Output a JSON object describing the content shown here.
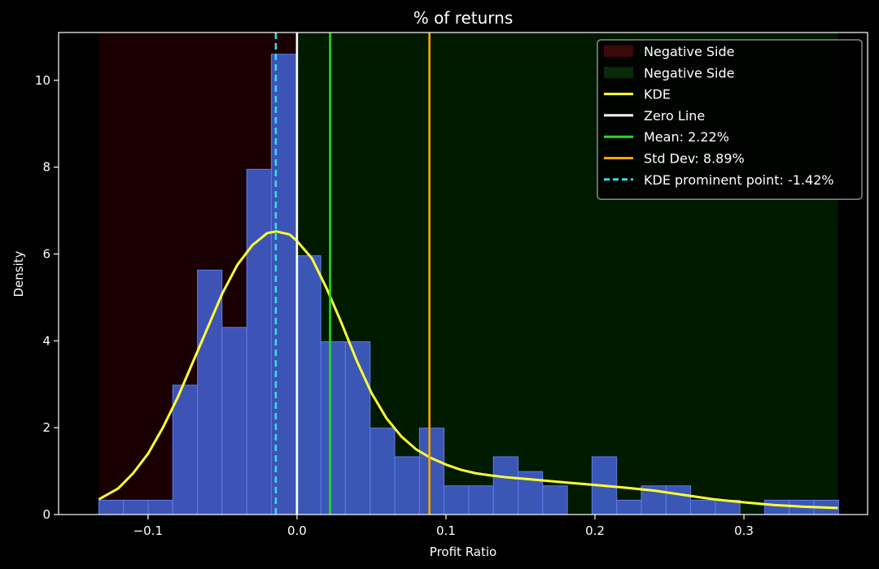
{
  "chart_data": {
    "type": "bar",
    "title": "% of returns",
    "xlabel": "Profit Ratio",
    "ylabel": "Density",
    "xlim": [
      -0.16,
      0.383
    ],
    "ylim": [
      0,
      11.1
    ],
    "grid": false,
    "legend_position": "top-right",
    "x_ticks": [
      {
        "value": -0.1,
        "label": "−0.1"
      },
      {
        "value": 0.0,
        "label": "0.0"
      },
      {
        "value": 0.1,
        "label": "0.1"
      },
      {
        "value": 0.2,
        "label": "0.2"
      },
      {
        "value": 0.3,
        "label": "0.3"
      }
    ],
    "y_ticks": [
      {
        "value": 0,
        "label": "0"
      },
      {
        "value": 2,
        "label": "2"
      },
      {
        "value": 4,
        "label": "4"
      },
      {
        "value": 6,
        "label": "6"
      },
      {
        "value": 8,
        "label": "8"
      },
      {
        "value": 10,
        "label": "10"
      }
    ],
    "regions": [
      {
        "name": "Negative Side",
        "x_range": [
          -0.133,
          0.0
        ],
        "color": "#ff0000",
        "opacity": 0.1
      },
      {
        "name": "Negative Side",
        "x_range": [
          0.0,
          0.363
        ],
        "color": "#00ff00",
        "opacity": 0.1
      }
    ],
    "histogram": {
      "bin_edges": [
        -0.133,
        -0.1165,
        -0.0999,
        -0.0834,
        -0.0668,
        -0.0503,
        -0.0337,
        -0.0172,
        -0.0006,
        0.016,
        0.0325,
        0.0491,
        0.0656,
        0.0822,
        0.0987,
        0.1153,
        0.1318,
        0.1484,
        0.1649,
        0.1815,
        0.198,
        0.2146,
        0.2311,
        0.2477,
        0.2642,
        0.2808,
        0.2973,
        0.3139,
        0.3304,
        0.347,
        0.3635
      ],
      "values": [
        0.33,
        0.33,
        0.33,
        2.98,
        5.63,
        4.31,
        7.95,
        10.6,
        5.96,
        3.98,
        3.98,
        1.99,
        1.33,
        1.99,
        0.66,
        0.66,
        1.33,
        0.99,
        0.66,
        0,
        1.33,
        0.33,
        0.66,
        0.66,
        0.33,
        0.33,
        0,
        0.33,
        0.33,
        0.33
      ],
      "color": "#4463d6"
    },
    "kde": {
      "name": "KDE",
      "color": "#ffff33",
      "x": [
        -0.133,
        -0.12,
        -0.11,
        -0.1,
        -0.09,
        -0.08,
        -0.07,
        -0.06,
        -0.05,
        -0.04,
        -0.03,
        -0.02,
        -0.014,
        -0.005,
        0.0,
        0.01,
        0.02,
        0.03,
        0.04,
        0.05,
        0.06,
        0.07,
        0.08,
        0.09,
        0.1,
        0.11,
        0.12,
        0.13,
        0.14,
        0.16,
        0.18,
        0.2,
        0.22,
        0.24,
        0.26,
        0.28,
        0.3,
        0.32,
        0.34,
        0.363
      ],
      "y": [
        0.35,
        0.6,
        0.95,
        1.4,
        2.0,
        2.7,
        3.5,
        4.3,
        5.1,
        5.75,
        6.2,
        6.48,
        6.52,
        6.45,
        6.3,
        5.9,
        5.2,
        4.4,
        3.55,
        2.8,
        2.22,
        1.8,
        1.5,
        1.3,
        1.15,
        1.03,
        0.95,
        0.9,
        0.86,
        0.8,
        0.74,
        0.68,
        0.62,
        0.55,
        0.45,
        0.35,
        0.28,
        0.22,
        0.18,
        0.15
      ]
    },
    "vlines": [
      {
        "name": "Zero Line",
        "x": 0.0,
        "color": "#ffffff",
        "dashed": false
      },
      {
        "name": "Mean: 2.22%",
        "x": 0.0222,
        "color": "#22dd22",
        "dashed": false
      },
      {
        "name": "Std Dev: 8.89%",
        "x": 0.0889,
        "color": "#ffa500",
        "dashed": false
      },
      {
        "name": "KDE prominent point: -1.42%",
        "x": -0.0142,
        "color": "#33dddd",
        "dashed": true
      }
    ],
    "legend": [
      {
        "label": "Negative Side",
        "kind": "patch",
        "color": "#3b0a0a"
      },
      {
        "label": "Negative Side",
        "kind": "patch",
        "color": "#0a2a0a"
      },
      {
        "label": "KDE",
        "kind": "line",
        "color": "#ffff33",
        "dashed": false
      },
      {
        "label": "Zero Line",
        "kind": "line",
        "color": "#ffffff",
        "dashed": false
      },
      {
        "label": "Mean: 2.22%",
        "kind": "line",
        "color": "#22dd22",
        "dashed": false
      },
      {
        "label": "Std Dev: 8.89%",
        "kind": "line",
        "color": "#ffa500",
        "dashed": false
      },
      {
        "label": "KDE prominent point: -1.42%",
        "kind": "line",
        "color": "#33dddd",
        "dashed": true
      }
    ]
  }
}
